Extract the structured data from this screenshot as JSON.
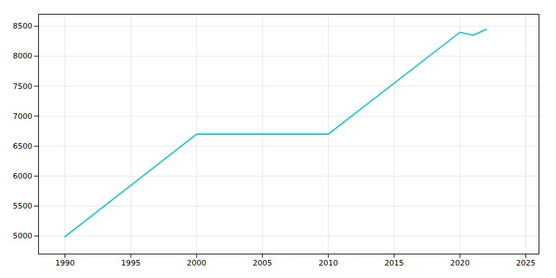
{
  "chart_data": {
    "type": "line",
    "x": [
      1990,
      2000,
      2010,
      2020,
      2021,
      2022
    ],
    "values": [
      4990,
      6700,
      6700,
      8400,
      8350,
      8450
    ],
    "color": "#00CDCD",
    "xlim": [
      1988,
      2026
    ],
    "ylim": [
      4700,
      8700
    ],
    "xticks": [
      1990,
      1995,
      2000,
      2005,
      2010,
      2015,
      2020,
      2025
    ],
    "yticks": [
      5000,
      5500,
      6000,
      6500,
      7000,
      7500,
      8000,
      8500
    ],
    "grid": true
  }
}
